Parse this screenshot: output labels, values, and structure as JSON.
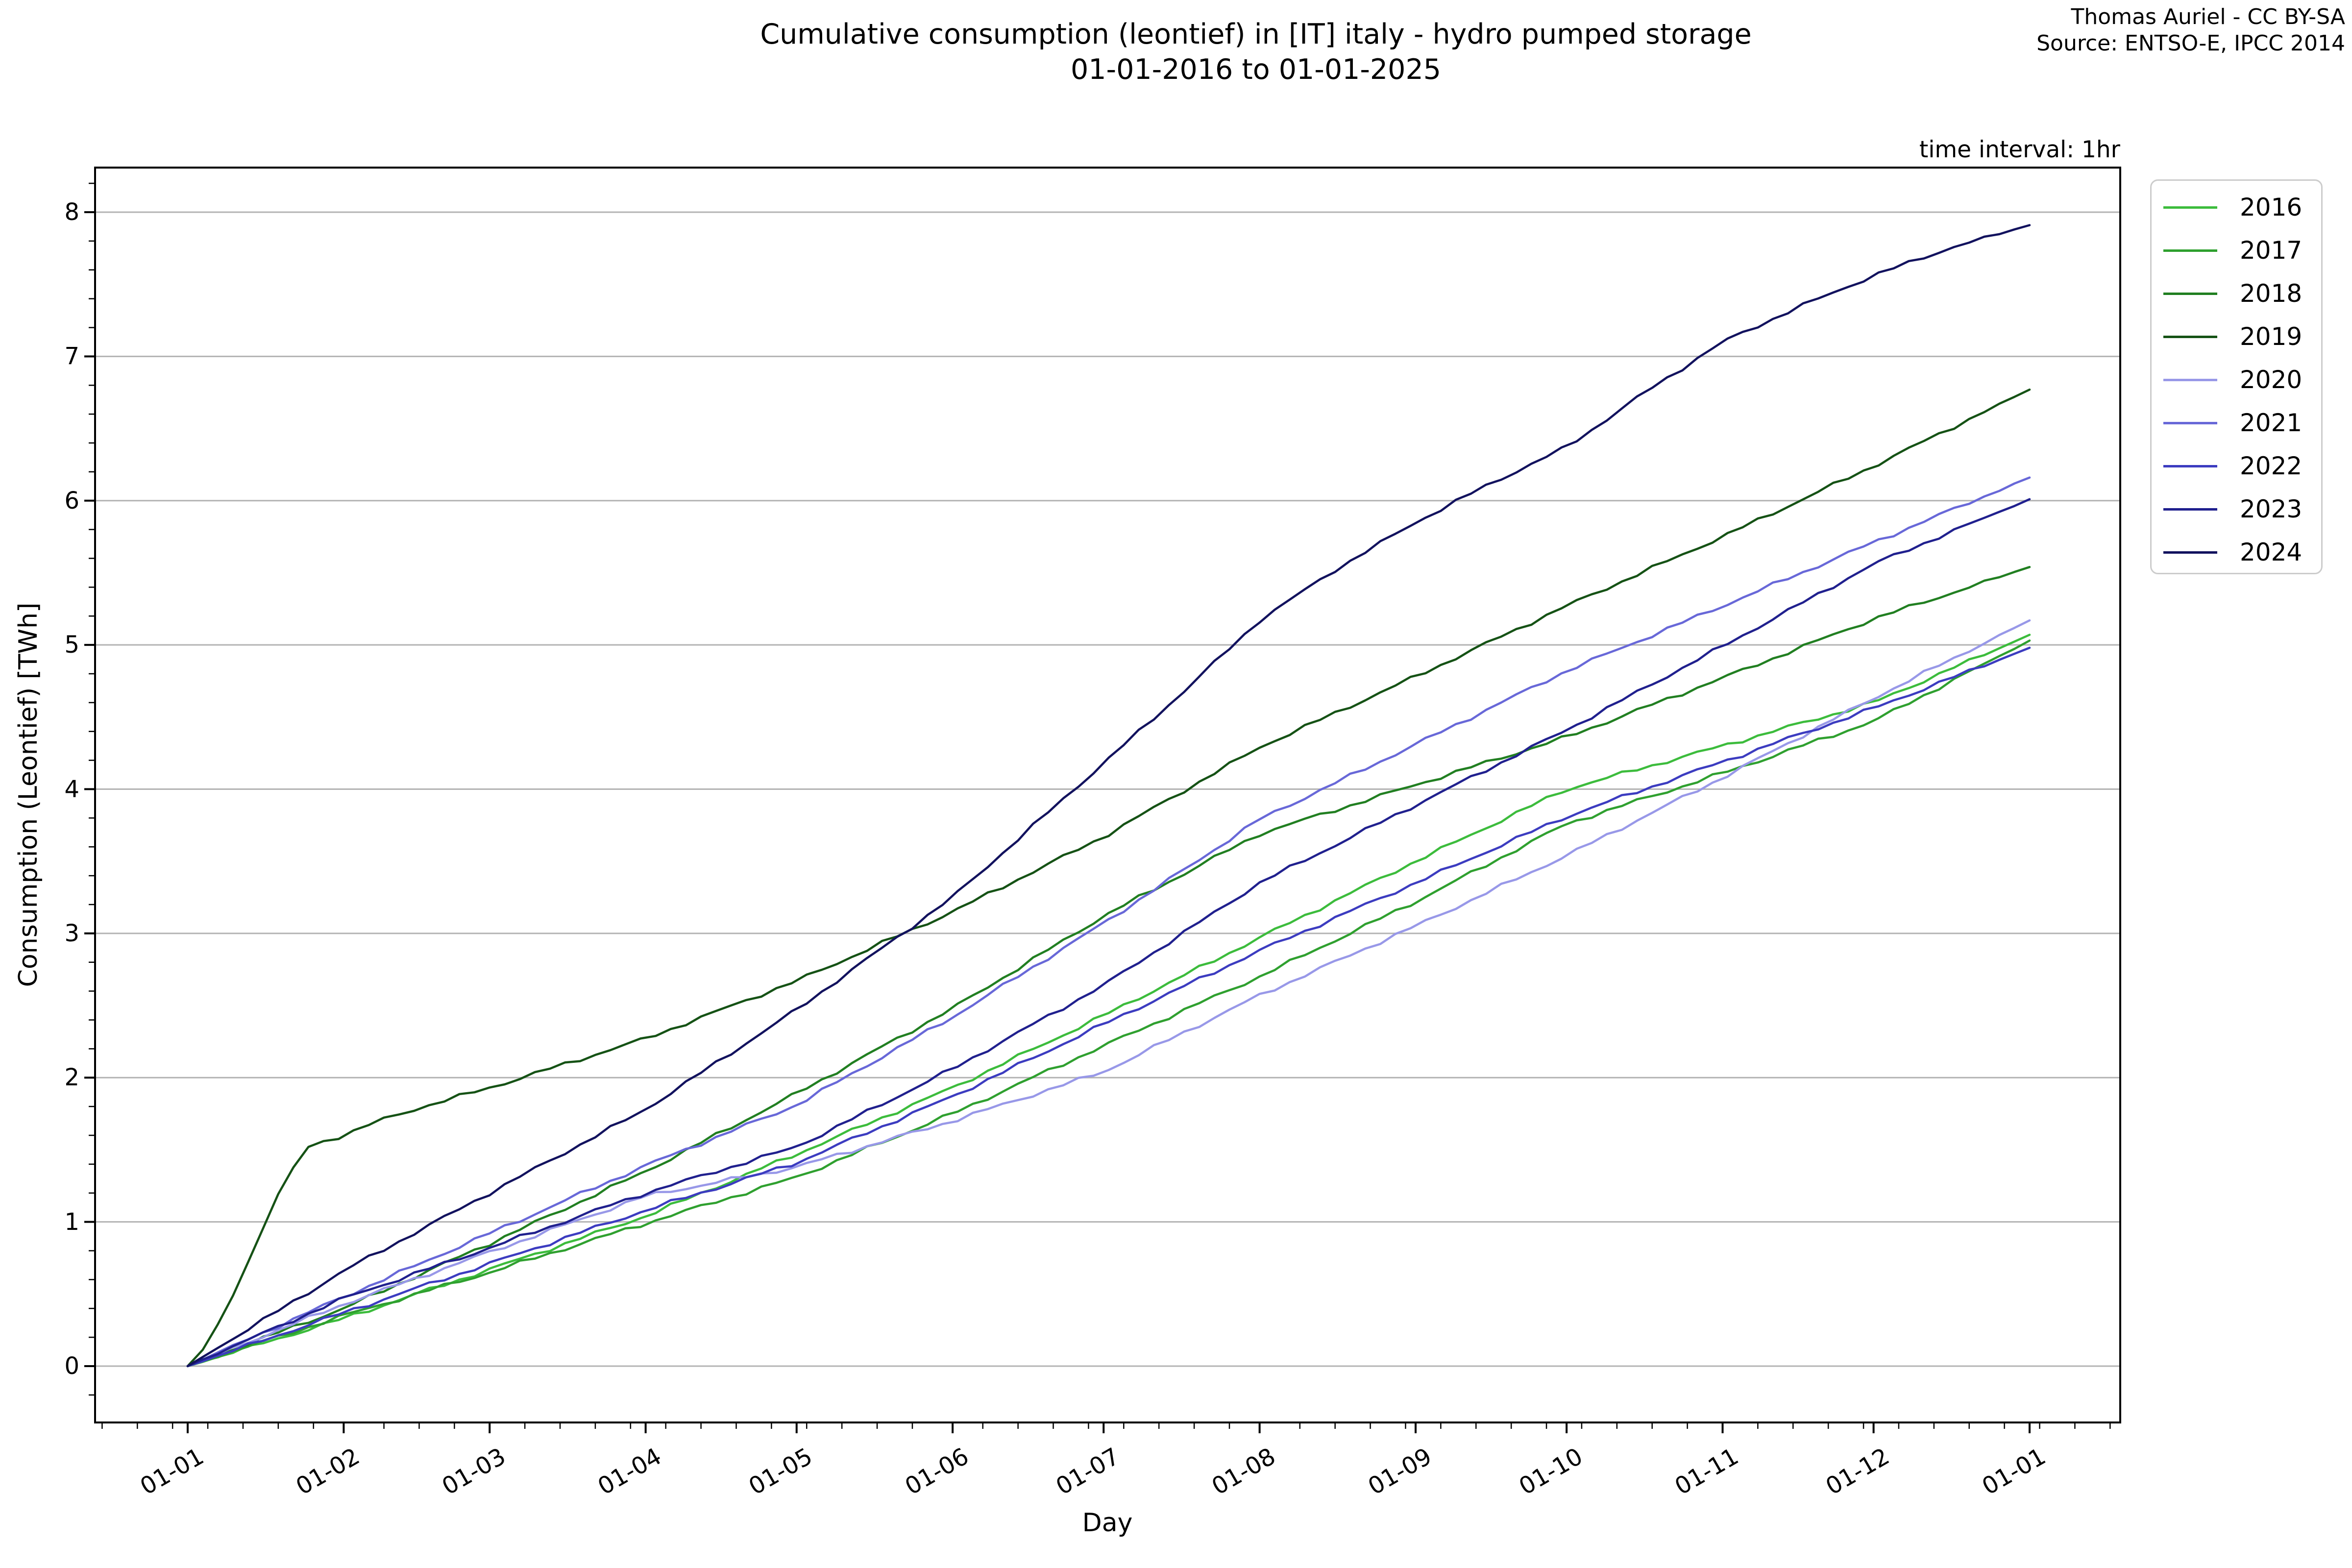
{
  "header": {
    "title_line1": "Cumulative consumption (leontief) in [IT] italy - hydro pumped storage",
    "title_line2": "01-01-2016 to 01-01-2025",
    "attribution_line1": "Thomas Auriel - CC BY-SA",
    "attribution_line2": "Source: ENTSO-E, IPCC 2014",
    "time_interval": "time interval: 1hr"
  },
  "chart_data": {
    "type": "line",
    "title": "Cumulative consumption (leontief) in [IT] italy - hydro pumped storage 01-01-2016 to 01-01-2025",
    "xlabel": "Day",
    "ylabel": "Consumption (Leontief) [TWh]",
    "x_unit": "day-of-year",
    "x_tick_labels": [
      "01-01",
      "01-02",
      "01-03",
      "01-04",
      "01-05",
      "01-06",
      "01-07",
      "01-08",
      "01-09",
      "01-10",
      "01-11",
      "01-12",
      "01-01"
    ],
    "x_tick_days": [
      0,
      31,
      60,
      91,
      121,
      152,
      182,
      213,
      244,
      274,
      305,
      335,
      366
    ],
    "y_ticks": [
      0,
      1,
      2,
      3,
      4,
      5,
      6,
      7,
      8
    ],
    "ylim": [
      0,
      8
    ],
    "xlim_days": [
      0,
      366
    ],
    "grid": "horizontal",
    "grid_color": "#b3b3b3",
    "legend_position": "outside-upper-right",
    "series": [
      {
        "name": "2016",
        "color": "#3cbc3c",
        "x": [
          0,
          31,
          60,
          91,
          121,
          152,
          182,
          213,
          244,
          274,
          305,
          335,
          366
        ],
        "y": [
          0,
          0.33,
          0.67,
          1.04,
          1.47,
          1.93,
          2.43,
          2.97,
          3.5,
          4.0,
          4.3,
          4.6,
          5.07
        ]
      },
      {
        "name": "2017",
        "color": "#2fa02f",
        "x": [
          0,
          31,
          60,
          91,
          121,
          152,
          182,
          213,
          244,
          274,
          305,
          335,
          366
        ],
        "y": [
          0,
          0.35,
          0.65,
          0.99,
          1.31,
          1.75,
          2.22,
          2.7,
          3.22,
          3.76,
          4.11,
          4.47,
          5.03
        ]
      },
      {
        "name": "2018",
        "color": "#217f21",
        "x": [
          0,
          31,
          60,
          91,
          121,
          152,
          182,
          213,
          244,
          274,
          305,
          335,
          366
        ],
        "y": [
          0,
          0.4,
          0.85,
          1.35,
          1.89,
          2.48,
          3.12,
          3.69,
          4.03,
          4.36,
          4.77,
          5.18,
          5.54
        ]
      },
      {
        "name": "2019",
        "color": "#155215",
        "x": [
          0,
          4,
          8,
          12,
          16,
          20,
          24,
          27,
          31,
          38,
          45,
          60,
          91,
          121,
          152,
          182,
          213,
          244,
          274,
          305,
          335,
          366
        ],
        "y": [
          0,
          0.15,
          0.42,
          0.72,
          1.05,
          1.32,
          1.52,
          1.56,
          1.6,
          1.7,
          1.78,
          1.93,
          2.27,
          2.67,
          3.15,
          3.67,
          4.29,
          4.78,
          5.27,
          5.75,
          6.24,
          6.77
        ]
      },
      {
        "name": "2020",
        "color": "#9898e8",
        "x": [
          0,
          31,
          60,
          91,
          121,
          152,
          182,
          213,
          244,
          274,
          305,
          335,
          366
        ],
        "y": [
          0,
          0.43,
          0.79,
          1.18,
          1.38,
          1.7,
          2.04,
          2.57,
          3.05,
          3.54,
          4.08,
          4.63,
          5.17
        ]
      },
      {
        "name": "2021",
        "color": "#6868d8",
        "x": [
          0,
          31,
          60,
          91,
          121,
          152,
          182,
          213,
          244,
          274,
          305,
          335,
          366
        ],
        "y": [
          0,
          0.48,
          0.92,
          1.39,
          1.81,
          2.42,
          3.07,
          3.79,
          4.31,
          4.82,
          5.27,
          5.71,
          6.16
        ]
      },
      {
        "name": "2022",
        "color": "#3c3cc0",
        "x": [
          0,
          31,
          60,
          91,
          121,
          152,
          182,
          213,
          244,
          274,
          305,
          335,
          366
        ],
        "y": [
          0,
          0.37,
          0.71,
          1.08,
          1.41,
          1.87,
          2.37,
          2.88,
          3.35,
          3.81,
          4.19,
          4.56,
          4.98
        ]
      },
      {
        "name": "2023",
        "color": "#20208e",
        "x": [
          0,
          31,
          60,
          91,
          121,
          152,
          182,
          213,
          244,
          274,
          305,
          335,
          366
        ],
        "y": [
          0,
          0.47,
          0.82,
          1.2,
          1.52,
          2.06,
          2.64,
          3.35,
          3.89,
          4.41,
          4.99,
          5.56,
          6.01
        ]
      },
      {
        "name": "2024",
        "color": "#12125e",
        "x": [
          0,
          31,
          60,
          91,
          121,
          152,
          182,
          198,
          213,
          228,
          244,
          259,
          274,
          290,
          305,
          320,
          335,
          350,
          366
        ],
        "y": [
          0,
          0.66,
          1.2,
          1.78,
          2.47,
          3.25,
          4.18,
          4.68,
          5.17,
          5.52,
          5.85,
          6.12,
          6.37,
          6.76,
          7.1,
          7.34,
          7.56,
          7.75,
          7.91
        ]
      }
    ]
  }
}
